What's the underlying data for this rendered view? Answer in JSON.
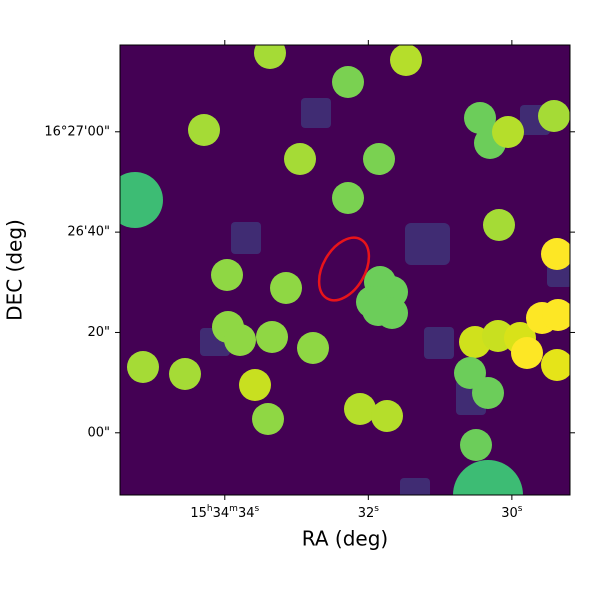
{
  "chart_data": {
    "type": "image",
    "xlabel": "RA (deg)",
    "ylabel": "DEC (deg)",
    "xlim": [
      35.46,
      29.19
    ],
    "xticks": [
      {
        "value": 34,
        "label": "15h34m34s"
      },
      {
        "value": 32,
        "label": "32s"
      },
      {
        "value": 30,
        "label": "30s"
      }
    ],
    "ylim": [
      -12.4,
      77.3
    ],
    "yticks": [
      {
        "value": 0,
        "label": "00\""
      },
      {
        "value": 20,
        "label": "20\""
      },
      {
        "value": 40,
        "label": "26'40\""
      },
      {
        "value": 60,
        "label": "16°27'00\""
      }
    ]
  }
}
